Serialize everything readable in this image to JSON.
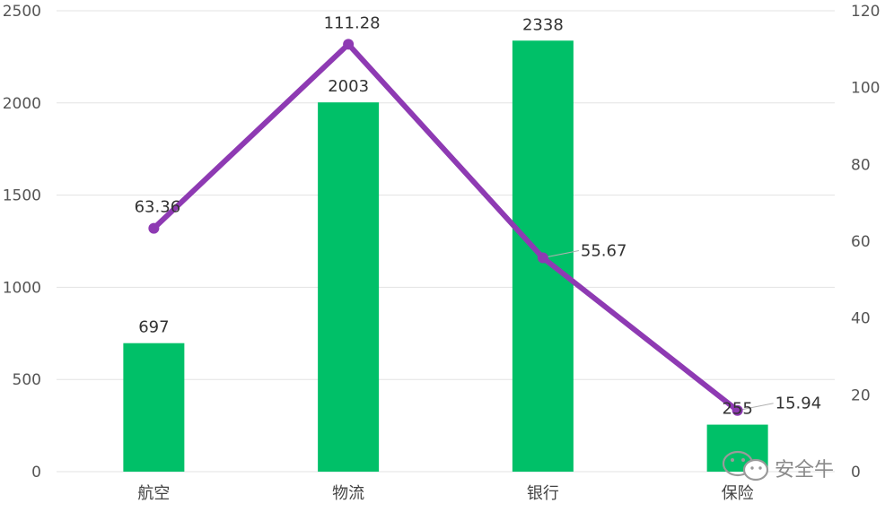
{
  "chart_data": {
    "type": "bar",
    "categories": [
      "航空",
      "物流",
      "银行",
      "保险"
    ],
    "series": [
      {
        "type": "bar",
        "axis": "left",
        "values": [
          697,
          2003,
          2338,
          255
        ]
      },
      {
        "type": "line",
        "axis": "right",
        "values": [
          63.36,
          111.28,
          55.67,
          15.94
        ]
      }
    ],
    "bar_labels": [
      "697",
      "2003",
      "2338",
      "255"
    ],
    "line_labels": [
      "63.36",
      "111.28",
      "55.67",
      "15.94"
    ],
    "ylim": [
      0,
      2500
    ],
    "y2lim": [
      0,
      120
    ],
    "yticks": [
      "0",
      "500",
      "1000",
      "1500",
      "2000",
      "2500"
    ],
    "y2ticks": [
      "0",
      "20",
      "40",
      "60",
      "80",
      "100",
      "120"
    ],
    "grid": true,
    "colors": {
      "bar": "#00c068",
      "line": "#8e3ab3",
      "grid": "#e3e3e3"
    }
  },
  "watermark": {
    "text": "安全牛",
    "icon": "wechat-icon"
  }
}
